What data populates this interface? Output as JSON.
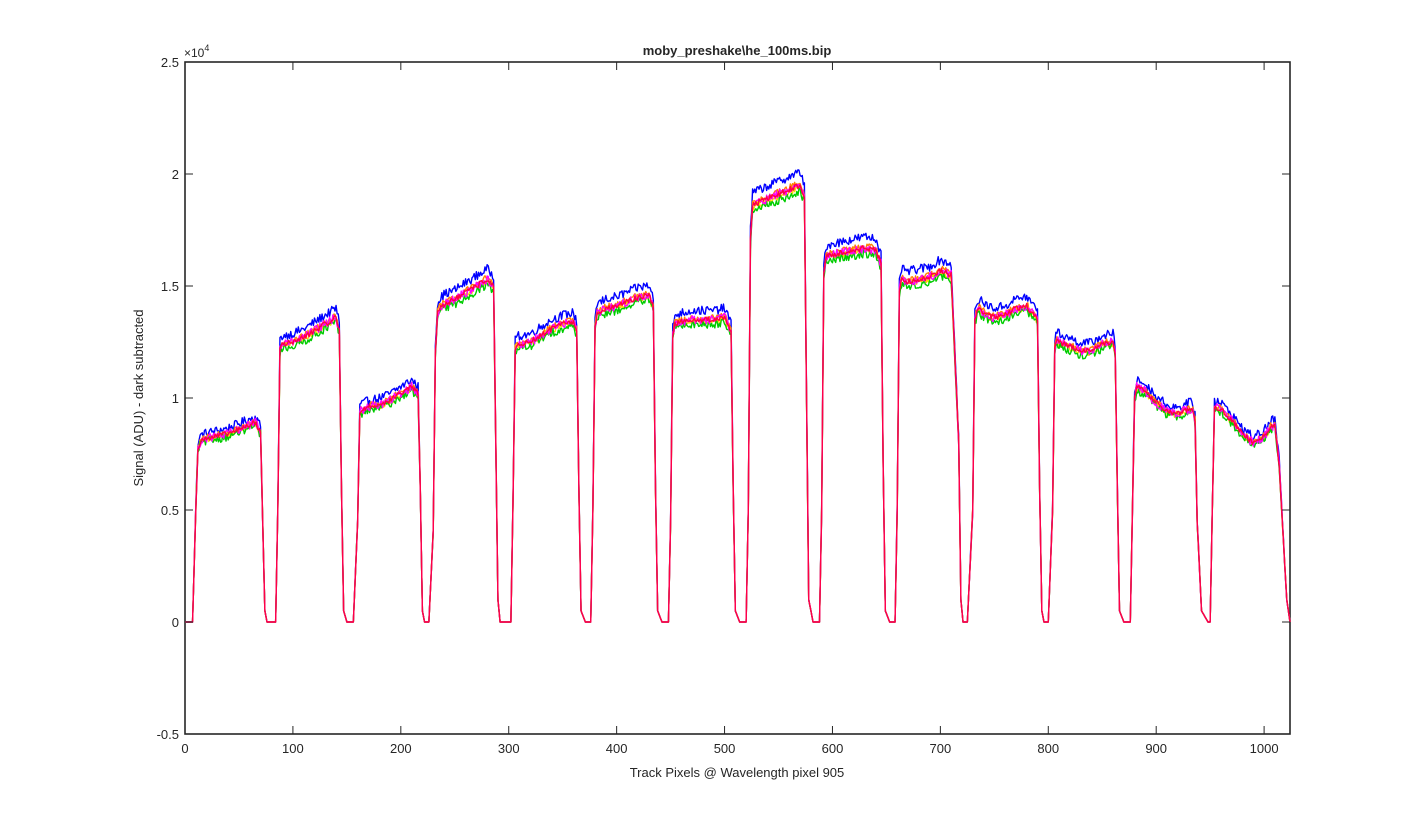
{
  "chart_data": {
    "type": "line",
    "title": "moby_preshake\\he_100ms.bip",
    "xlabel": "Track Pixels @ Wavelength pixel 905",
    "ylabel": "Signal (ADU) - dark subtracted",
    "exponent_label": {
      "base": "×10",
      "power": "4"
    },
    "xlim": [
      0,
      1024
    ],
    "ylim": [
      -0.5,
      2.5
    ],
    "y_scale_note": "values shown in units of 10^4 ADU",
    "x_ticks": [
      0,
      100,
      200,
      300,
      400,
      500,
      600,
      700,
      800,
      900,
      1000
    ],
    "y_ticks": [
      -0.5,
      0,
      0.5,
      1,
      1.5,
      2,
      2.5
    ],
    "y_tick_labels": [
      "-0.5",
      "0",
      "0.5",
      "1",
      "1.5",
      "2",
      "2.5"
    ],
    "grid": false,
    "legend": "none",
    "series_colors": [
      "#0000ff",
      "#ff7f00",
      "#ffd700",
      "#00cc00",
      "#ff00ff",
      "#ff0044"
    ],
    "series_offsets": [
      0.03,
      0.005,
      -0.005,
      -0.015,
      0,
      0
    ],
    "series_noise": [
      0.02,
      0.015,
      0.015,
      0.018,
      0.02,
      0.012
    ],
    "x": [
      0,
      7,
      10,
      12,
      15,
      20,
      30,
      40,
      50,
      60,
      65,
      70,
      72,
      74,
      76,
      80,
      84,
      86,
      88,
      90,
      100,
      110,
      120,
      130,
      140,
      143,
      145,
      147,
      150,
      156,
      160,
      162,
      170,
      180,
      190,
      200,
      210,
      216,
      218,
      220,
      222,
      226,
      230,
      232,
      234,
      236,
      240,
      250,
      260,
      270,
      280,
      286,
      288,
      290,
      292,
      296,
      302,
      304,
      306,
      308,
      310,
      320,
      330,
      340,
      350,
      360,
      363,
      365,
      367,
      371,
      376,
      378,
      380,
      382,
      390,
      400,
      410,
      420,
      430,
      434,
      436,
      438,
      442,
      448,
      450,
      452,
      454,
      460,
      470,
      480,
      490,
      500,
      506,
      508,
      510,
      514,
      520,
      522,
      524,
      526,
      530,
      540,
      550,
      560,
      570,
      574,
      576,
      578,
      582,
      588,
      590,
      592,
      594,
      600,
      610,
      620,
      630,
      640,
      645,
      647,
      649,
      653,
      658,
      660,
      662,
      664,
      670,
      680,
      690,
      700,
      710,
      717,
      719,
      721,
      725,
      730,
      732,
      734,
      736,
      740,
      750,
      760,
      770,
      780,
      790,
      792,
      794,
      796,
      800,
      804,
      806,
      808,
      810,
      820,
      830,
      840,
      850,
      860,
      862,
      864,
      866,
      870,
      876,
      878,
      880,
      882,
      890,
      900,
      910,
      920,
      930,
      934,
      936,
      938,
      942,
      948,
      950,
      952,
      954,
      960,
      970,
      980,
      990,
      1000,
      1006,
      1010,
      1014,
      1018,
      1021,
      1024
    ],
    "y": [
      0,
      0,
      0.5,
      0.78,
      0.81,
      0.82,
      0.83,
      0.84,
      0.86,
      0.88,
      0.89,
      0.85,
      0.45,
      0.05,
      0,
      0,
      0,
      0.5,
      1.22,
      1.24,
      1.25,
      1.27,
      1.3,
      1.33,
      1.36,
      1.3,
      0.6,
      0.05,
      0,
      0,
      0.45,
      0.94,
      0.96,
      0.97,
      0.99,
      1.02,
      1.05,
      1.02,
      0.6,
      0.05,
      0,
      0,
      0.4,
      1.2,
      1.38,
      1.4,
      1.42,
      1.44,
      1.47,
      1.5,
      1.53,
      1.5,
      0.8,
      0.1,
      0,
      0,
      0,
      0.55,
      1.22,
      1.24,
      1.24,
      1.25,
      1.28,
      1.31,
      1.33,
      1.34,
      1.3,
      0.6,
      0.05,
      0,
      0,
      0.5,
      1.32,
      1.38,
      1.4,
      1.41,
      1.43,
      1.45,
      1.46,
      1.4,
      0.6,
      0.05,
      0,
      0,
      0.45,
      1.28,
      1.33,
      1.34,
      1.35,
      1.35,
      1.35,
      1.36,
      1.3,
      0.6,
      0.05,
      0,
      0,
      0.5,
      1.7,
      1.86,
      1.87,
      1.89,
      1.91,
      1.93,
      1.95,
      1.9,
      1.0,
      0.1,
      0,
      0,
      0.5,
      1.55,
      1.63,
      1.64,
      1.65,
      1.66,
      1.67,
      1.66,
      1.6,
      0.7,
      0.05,
      0,
      0,
      0.5,
      1.48,
      1.53,
      1.52,
      1.53,
      1.54,
      1.57,
      1.55,
      0.8,
      0.1,
      0,
      0,
      0.5,
      1.35,
      1.39,
      1.4,
      1.38,
      1.36,
      1.37,
      1.4,
      1.41,
      1.35,
      0.6,
      0.05,
      0,
      0,
      0.5,
      1.22,
      1.26,
      1.25,
      1.23,
      1.21,
      1.21,
      1.24,
      1.25,
      1.2,
      0.6,
      0.05,
      0,
      0,
      0.5,
      1.0,
      1.05,
      1.03,
      0.98,
      0.94,
      0.93,
      0.95,
      0.95,
      0.9,
      0.45,
      0.05,
      0,
      0,
      0.5,
      0.96,
      0.95,
      0.9,
      0.84,
      0.8,
      0.83,
      0.87,
      0.88,
      0.7,
      0.35,
      0.1,
      0
    ]
  }
}
